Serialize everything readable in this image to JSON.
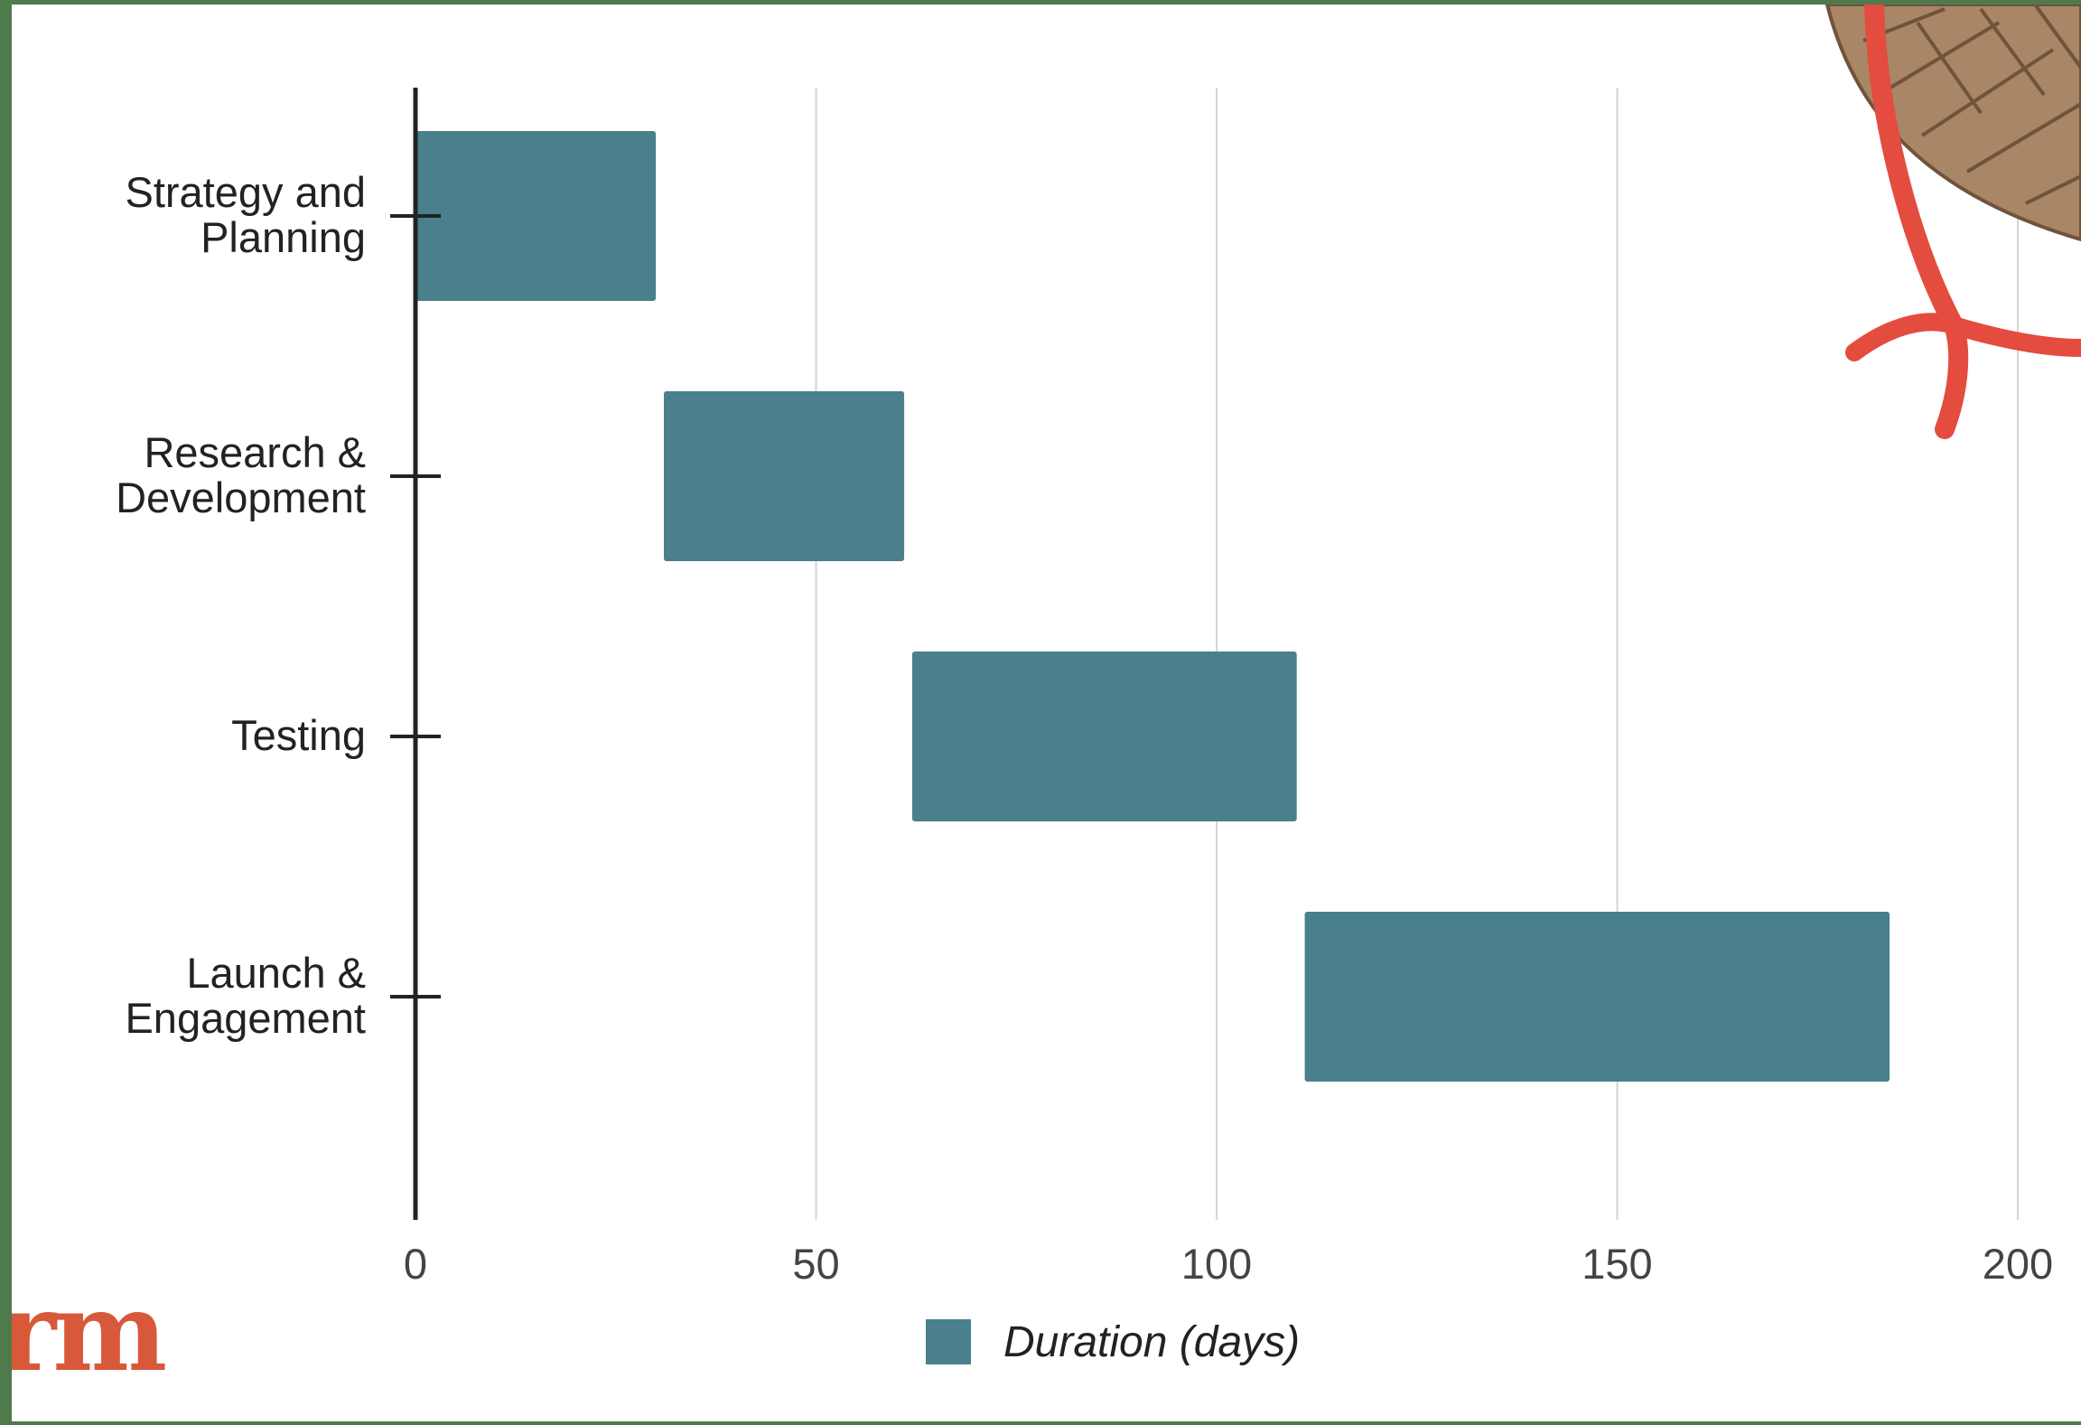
{
  "chart_data": {
    "type": "bar",
    "orientation": "horizontal",
    "subtype": "gantt",
    "categories": [
      [
        "Strategy and",
        "Planning"
      ],
      [
        "Research &",
        "Development"
      ],
      [
        "Testing"
      ],
      [
        "Launch &",
        "Engagement"
      ]
    ],
    "series": [
      {
        "name": "Duration (days)",
        "color": "#4a7f8c",
        "start": [
          0,
          31,
          62,
          111
        ],
        "end": [
          30,
          61,
          110,
          184
        ]
      }
    ],
    "xlim": [
      0,
      200
    ],
    "xticks": [
      "0",
      "50",
      "100",
      "150",
      "200"
    ],
    "grid": true,
    "legend_position": "bottom",
    "title": "",
    "xlabel": "",
    "ylabel": ""
  },
  "decoration": {
    "watermark_text": "rm",
    "frame_color": "#4f7a4c",
    "accent_color": "#d8583a",
    "ribbon_color": "#e34c3e",
    "basket_color": "#a98665"
  }
}
